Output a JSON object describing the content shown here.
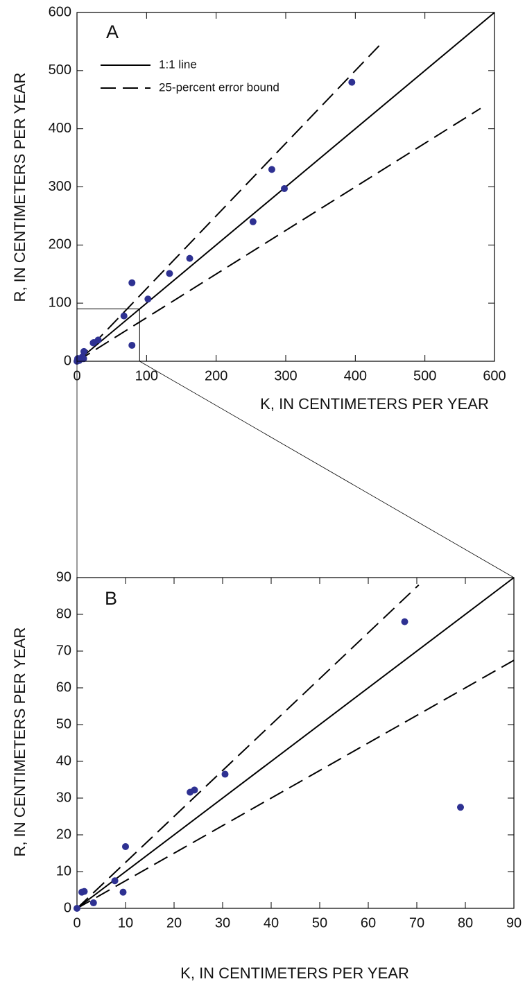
{
  "chart_data": [
    {
      "type": "scatter",
      "title": "A",
      "xlabel": "K, IN CENTIMETERS PER YEAR",
      "ylabel": "R, IN CENTIMETERS PER YEAR",
      "x": [
        395,
        280,
        298,
        253,
        162,
        133,
        79,
        102,
        67.5,
        79,
        30.5,
        24.2,
        23.3,
        10,
        7.8,
        9.5,
        1.5,
        1,
        3.4,
        0
      ],
      "values": [
        480,
        330,
        297,
        240,
        177,
        151,
        135,
        107,
        78,
        27.5,
        36.5,
        32.2,
        31.6,
        16.8,
        7.5,
        4.4,
        4.6,
        4.4,
        1.5,
        0
      ],
      "color": "#2e3192",
      "xlim": [
        0,
        600
      ],
      "ylim": [
        0,
        600
      ],
      "xticks": [
        0,
        100,
        200,
        300,
        400,
        500,
        600
      ],
      "yticks": [
        0,
        100,
        200,
        300,
        400,
        500,
        600
      ],
      "lines": [
        {
          "name": "1:1 line",
          "x": [
            0,
            600
          ],
          "values": [
            0,
            600
          ],
          "style": "solid"
        },
        {
          "name": "25-percent error bound",
          "x": [
            0,
            440
          ],
          "values": [
            0,
            550
          ],
          "style": "dashed"
        },
        {
          "x": [
            0,
            580
          ],
          "values": [
            0,
            435
          ],
          "style": "dashed"
        }
      ],
      "legend": "upper left"
    },
    {
      "type": "scatter",
      "title": "B",
      "xlabel": "K, IN CENTIMETERS PER YEAR",
      "ylabel": "R, IN CENTIMETERS PER YEAR",
      "x": [
        67.5,
        79,
        30.5,
        24.2,
        23.3,
        10,
        7.8,
        9.5,
        1.5,
        1,
        3.4,
        0
      ],
      "values": [
        78,
        27.5,
        36.5,
        32.2,
        31.6,
        16.8,
        7.5,
        4.4,
        4.6,
        4.4,
        1.5,
        0
      ],
      "color": "#2e3192",
      "xlim": [
        0,
        90
      ],
      "ylim": [
        0,
        90
      ],
      "xticks": [
        0,
        10,
        20,
        30,
        40,
        50,
        60,
        70,
        80,
        90
      ],
      "yticks": [
        0,
        10,
        20,
        30,
        40,
        50,
        60,
        70,
        80,
        90
      ],
      "lines": [
        {
          "x": [
            0,
            90
          ],
          "values": [
            0,
            90
          ],
          "style": "solid"
        },
        {
          "x": [
            0,
            70.4
          ],
          "values": [
            0,
            88
          ],
          "style": "dashed"
        },
        {
          "x": [
            0,
            90
          ],
          "values": [
            0,
            67.5
          ],
          "style": "dashed"
        }
      ]
    }
  ]
}
